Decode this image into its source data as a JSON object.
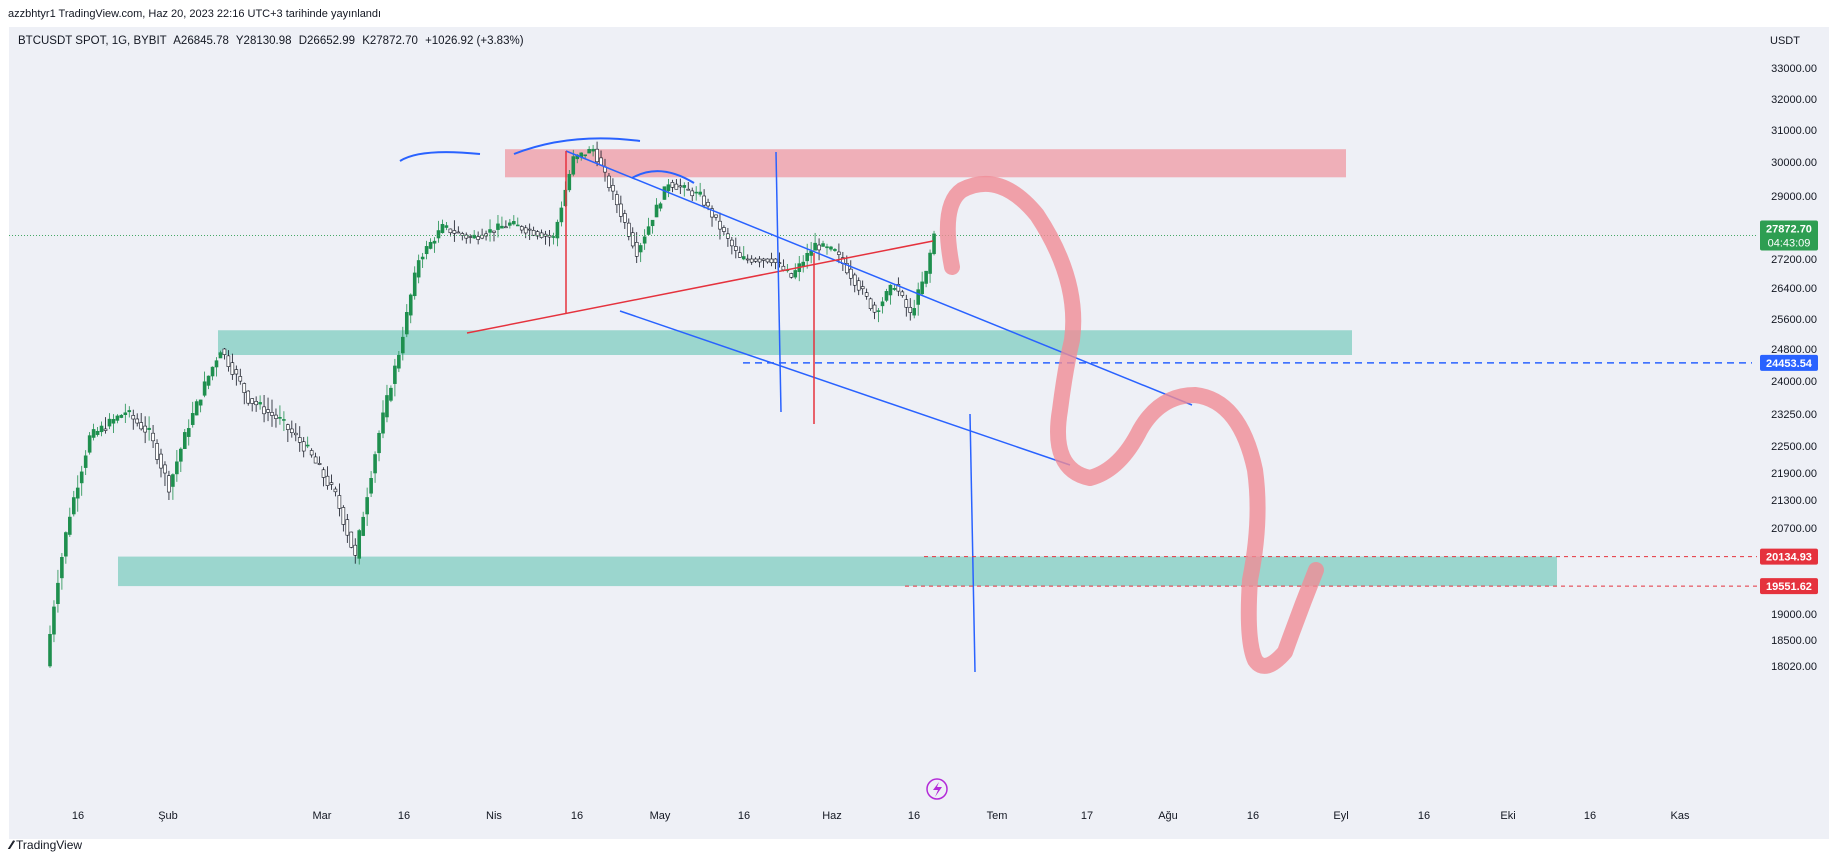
{
  "header": {
    "author_line": "azzbhtyr1 TradingView.com, Haz 20, 2023 22:16 UTC+3 tarihinde yayınlandı"
  },
  "symbol": {
    "name": "BTCUSDT SPOT, 1G, BYBIT",
    "open": "A26845.78",
    "high": "Y28130.98",
    "low": "D26652.99",
    "close": "K27872.70",
    "change": "+1026.92 (+3.83%)"
  },
  "currency": "USDT",
  "footer": {
    "brand": "TradingView"
  },
  "colors": {
    "up": "#1e8f4e",
    "down": "#131722",
    "blue": "#2962ff",
    "red_line": "#e5323d",
    "zone_red": "rgba(240,140,150,0.65)",
    "zone_green": "rgba(110,200,185,0.65)",
    "label_green": "#2e9e52",
    "label_blue": "#2962ff",
    "label_red": "#e5323d"
  },
  "chart_data": {
    "type": "candlestick",
    "price_axis_labels": [
      "33000.00",
      "32000.00",
      "31000.00",
      "30000.00",
      "29000.00",
      "27200.00",
      "26400.00",
      "25600.00",
      "24800.00",
      "24000.00",
      "23250.00",
      "22500.00",
      "21900.00",
      "21300.00",
      "20700.00",
      "19000.00",
      "18500.00",
      "18020.00"
    ],
    "price_axis_values": [
      33000,
      32000,
      31000,
      30000,
      29000,
      27200,
      26400,
      25600,
      24800,
      24000,
      23250,
      22500,
      21900,
      21300,
      20700,
      19000,
      18500,
      18020
    ],
    "time_axis_labels": [
      "16",
      "Şub",
      "Mar",
      "16",
      "Nis",
      "16",
      "May",
      "16",
      "Haz",
      "16",
      "Tem",
      "17",
      "Ağu",
      "16",
      "Eyl",
      "16",
      "Eki",
      "16",
      "Kas"
    ],
    "price_labels": [
      {
        "text": "27872.70",
        "sub": "04:43:09",
        "value": 27872.7,
        "color": "green"
      },
      {
        "text": "24453.54",
        "value": 24453.54,
        "color": "blue"
      },
      {
        "text": "20134.93",
        "value": 20134.93,
        "color": "red"
      },
      {
        "text": "19551.62",
        "value": 19551.62,
        "color": "red"
      }
    ],
    "zones": [
      {
        "name": "resistance",
        "from": 29550,
        "to": 30400,
        "color": "red"
      },
      {
        "name": "support-upper",
        "from": 24650,
        "to": 25300,
        "color": "green"
      },
      {
        "name": "support-lower",
        "from": 19551.62,
        "to": 20134.93,
        "color": "green"
      }
    ],
    "candles": []
  }
}
